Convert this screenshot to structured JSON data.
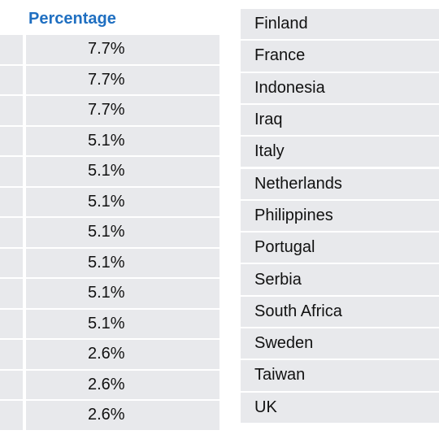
{
  "left_table": {
    "header": "Percentage",
    "rows": [
      "7.7%",
      "7.7%",
      "7.7%",
      "5.1%",
      "5.1%",
      "5.1%",
      "5.1%",
      "5.1%",
      "5.1%",
      "5.1%",
      "2.6%",
      "2.6%",
      "2.6%"
    ]
  },
  "right_table": {
    "rows": [
      "Finland",
      "France",
      "Indonesia",
      "Iraq",
      "Italy",
      "Netherlands",
      "Philippines",
      "Portugal",
      "Serbia",
      "South Africa",
      "Sweden",
      "Taiwan",
      "UK"
    ]
  }
}
